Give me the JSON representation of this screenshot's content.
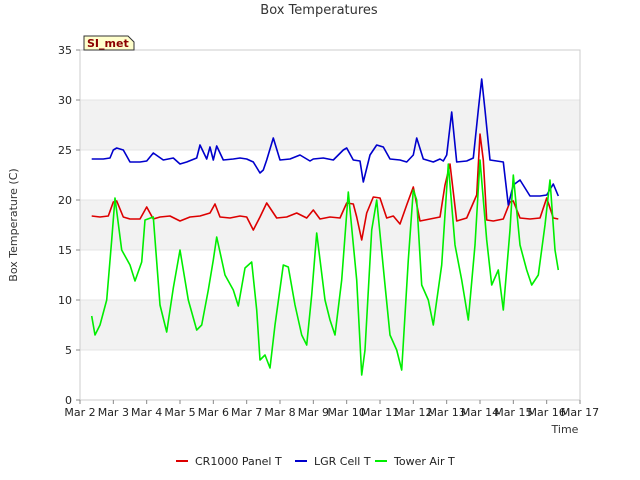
{
  "chart_data": {
    "type": "line",
    "title": "Box Temperatures",
    "xlabel": "Time",
    "ylabel": "Box Temperature (C)",
    "badge": "SI_met",
    "ylim": [
      0,
      35
    ],
    "yticks": [
      0,
      5,
      10,
      15,
      20,
      25,
      30,
      35
    ],
    "xlim": [
      2,
      17
    ],
    "xticks": [
      2,
      3,
      4,
      5,
      6,
      7,
      8,
      9,
      10,
      11,
      12,
      13,
      14,
      15,
      16,
      17
    ],
    "xtick_labels": [
      "Mar 2",
      "Mar 3",
      "Mar 4",
      "Mar 5",
      "Mar 6",
      "Mar 7",
      "Mar 8",
      "Mar 9",
      "Mar 10",
      "Mar 11",
      "Mar 12",
      "Mar 13",
      "Mar 14",
      "Mar 15",
      "Mar 16",
      "Mar 17"
    ],
    "grid_bands": true,
    "legend_position": "bottom",
    "series": [
      {
        "name": "CR1000 Panel T",
        "color": "#dd0000",
        "x": [
          2.35,
          2.6,
          2.85,
          3.0,
          3.1,
          3.3,
          3.5,
          3.8,
          4.0,
          4.2,
          4.4,
          4.7,
          5.0,
          5.3,
          5.6,
          5.9,
          6.05,
          6.2,
          6.5,
          6.8,
          7.0,
          7.2,
          7.4,
          7.6,
          7.9,
          8.2,
          8.5,
          8.8,
          9.0,
          9.2,
          9.5,
          9.8,
          10.0,
          10.2,
          10.3,
          10.45,
          10.6,
          10.8,
          11.0,
          11.2,
          11.4,
          11.6,
          11.8,
          12.0,
          12.2,
          12.5,
          12.8,
          12.95,
          13.1,
          13.3,
          13.6,
          13.9,
          14.0,
          14.1,
          14.2,
          14.4,
          14.7,
          14.9,
          15.0,
          15.2,
          15.5,
          15.8,
          16.0,
          16.2,
          16.35
        ],
        "values": [
          18.4,
          18.3,
          18.4,
          19.8,
          19.9,
          18.3,
          18.1,
          18.1,
          19.3,
          18.1,
          18.3,
          18.4,
          17.9,
          18.3,
          18.4,
          18.7,
          19.6,
          18.3,
          18.2,
          18.4,
          18.3,
          17.0,
          18.3,
          19.7,
          18.2,
          18.3,
          18.7,
          18.2,
          19.0,
          18.1,
          18.3,
          18.2,
          19.7,
          19.6,
          18.3,
          16.0,
          18.7,
          20.3,
          20.2,
          18.2,
          18.4,
          17.6,
          19.5,
          21.3,
          17.9,
          18.1,
          18.3,
          21.5,
          23.6,
          17.9,
          18.2,
          20.5,
          26.6,
          24.0,
          18.0,
          17.9,
          18.1,
          19.8,
          19.9,
          18.2,
          18.1,
          18.2,
          20.2,
          18.2,
          18.1
        ]
      },
      {
        "name": "LGR Cell T",
        "color": "#0000cc",
        "x": [
          2.35,
          2.7,
          2.9,
          3.0,
          3.1,
          3.3,
          3.5,
          3.8,
          4.0,
          4.2,
          4.5,
          4.8,
          5.0,
          5.2,
          5.5,
          5.6,
          5.8,
          5.9,
          6.0,
          6.1,
          6.3,
          6.6,
          6.8,
          7.0,
          7.2,
          7.4,
          7.5,
          7.6,
          7.8,
          8.0,
          8.3,
          8.6,
          8.9,
          9.0,
          9.3,
          9.6,
          9.9,
          10.0,
          10.2,
          10.4,
          10.5,
          10.7,
          10.9,
          11.1,
          11.3,
          11.6,
          11.8,
          12.0,
          12.1,
          12.3,
          12.6,
          12.8,
          12.9,
          13.0,
          13.15,
          13.3,
          13.6,
          13.8,
          13.95,
          14.05,
          14.15,
          14.3,
          14.5,
          14.7,
          14.85,
          15.0,
          15.2,
          15.5,
          15.8,
          16.0,
          16.2,
          16.35
        ],
        "values": [
          24.1,
          24.1,
          24.2,
          25.0,
          25.2,
          25.0,
          23.8,
          23.8,
          23.9,
          24.7,
          24.0,
          24.2,
          23.6,
          23.8,
          24.2,
          25.5,
          24.1,
          25.3,
          24.0,
          25.4,
          24.0,
          24.1,
          24.2,
          24.1,
          23.8,
          22.7,
          23.0,
          24.0,
          26.2,
          24.0,
          24.1,
          24.5,
          23.9,
          24.1,
          24.2,
          24.0,
          25.0,
          25.2,
          24.0,
          23.9,
          21.8,
          24.5,
          25.5,
          25.3,
          24.1,
          24.0,
          23.8,
          24.5,
          26.2,
          24.1,
          23.8,
          24.1,
          23.9,
          24.5,
          28.8,
          23.8,
          23.9,
          24.2,
          29.0,
          32.1,
          29.0,
          24.0,
          23.9,
          23.8,
          19.5,
          21.5,
          22.0,
          20.4,
          20.4,
          20.5,
          21.6,
          20.4
        ]
      },
      {
        "name": "Tower Air T",
        "color": "#00ee00",
        "x": [
          2.35,
          2.45,
          2.6,
          2.8,
          2.95,
          3.05,
          3.25,
          3.5,
          3.65,
          3.85,
          3.95,
          4.2,
          4.4,
          4.6,
          4.8,
          5.0,
          5.25,
          5.5,
          5.65,
          5.85,
          6.0,
          6.1,
          6.35,
          6.6,
          6.75,
          6.95,
          7.15,
          7.3,
          7.4,
          7.55,
          7.7,
          7.85,
          8.1,
          8.25,
          8.45,
          8.65,
          8.8,
          8.95,
          9.1,
          9.35,
          9.5,
          9.65,
          9.85,
          10.05,
          10.3,
          10.45,
          10.55,
          10.75,
          10.9,
          11.15,
          11.3,
          11.5,
          11.65,
          11.85,
          12.0,
          12.1,
          12.25,
          12.45,
          12.6,
          12.85,
          13.05,
          13.25,
          13.45,
          13.65,
          13.85,
          14.0,
          14.2,
          14.35,
          14.55,
          14.7,
          14.9,
          15.0,
          15.2,
          15.4,
          15.55,
          15.75,
          15.95,
          16.1,
          16.25,
          16.35
        ],
        "values": [
          8.4,
          6.5,
          7.5,
          10.0,
          16.0,
          20.2,
          15.0,
          13.5,
          11.9,
          13.8,
          18.0,
          18.3,
          9.5,
          6.8,
          11.2,
          15.0,
          10.0,
          7.0,
          7.5,
          11.0,
          14.0,
          16.3,
          12.5,
          11.0,
          9.4,
          13.2,
          13.8,
          9.0,
          4.0,
          4.5,
          3.2,
          7.5,
          13.5,
          13.3,
          9.5,
          6.5,
          5.5,
          10.5,
          16.7,
          10.0,
          8.0,
          6.5,
          12.0,
          20.8,
          12.0,
          2.5,
          5.0,
          17.0,
          20.0,
          11.5,
          6.5,
          5.0,
          3.0,
          14.0,
          21.0,
          20.0,
          11.5,
          10.0,
          7.5,
          13.5,
          23.6,
          15.5,
          12.0,
          8.0,
          15.5,
          24.0,
          16.0,
          11.5,
          13.0,
          9.0,
          17.0,
          22.5,
          15.5,
          13.0,
          11.5,
          12.5,
          17.5,
          22.0,
          15.0,
          13.0
        ]
      }
    ]
  }
}
